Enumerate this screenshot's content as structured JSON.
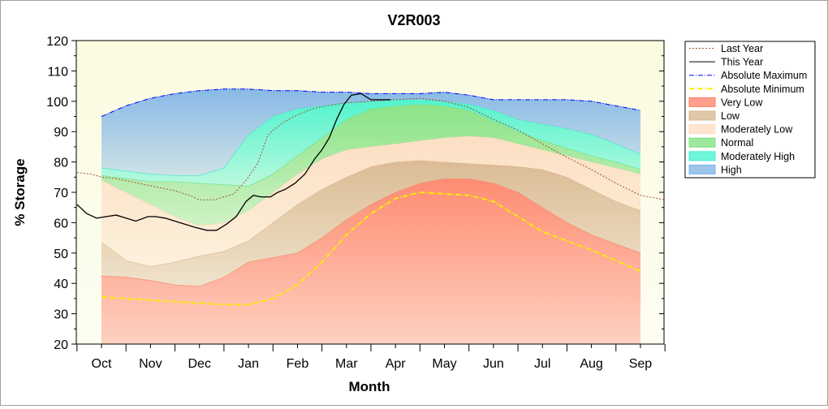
{
  "chart_data": {
    "type": "area",
    "title": "V2R003",
    "xlabel": "Month",
    "ylabel": "% Storage",
    "ylim": [
      20,
      120
    ],
    "yticks": [
      20,
      30,
      40,
      50,
      60,
      70,
      80,
      90,
      100,
      110,
      120
    ],
    "xlim": [
      -0.5,
      11.5
    ],
    "categories": [
      "Oct",
      "Nov",
      "Dec",
      "Jan",
      "Feb",
      "Mar",
      "Apr",
      "May",
      "Jun",
      "Jul",
      "Aug",
      "Sep"
    ],
    "grid": false,
    "legend_position": "right",
    "band_x": [
      0,
      0.5,
      1,
      1.5,
      2,
      2.5,
      3,
      3.5,
      4,
      4.5,
      5,
      5.5,
      6,
      6.5,
      7,
      7.5,
      8,
      8.5,
      9,
      9.5,
      10,
      10.5,
      11
    ],
    "band_bounds": {
      "floor": [
        20,
        20,
        20,
        20,
        20,
        20,
        20,
        20,
        20,
        20,
        20,
        20,
        20,
        20,
        20,
        20,
        20,
        20,
        20,
        20,
        20,
        20,
        20
      ],
      "very_low_top": [
        42.5,
        42,
        41,
        39.5,
        39,
        42,
        47,
        48.5,
        50,
        55,
        61,
        66,
        70,
        73,
        74.5,
        74.5,
        73,
        70,
        65,
        60,
        56,
        53,
        50
      ],
      "low_top": [
        53.5,
        47.5,
        45.5,
        47,
        49,
        50.5,
        54,
        60,
        66,
        71,
        75,
        78.5,
        80,
        80.5,
        80,
        79.5,
        79,
        78.5,
        77.5,
        75,
        71,
        67,
        64
      ],
      "moderately_low_top": [
        74,
        70,
        66,
        62,
        59,
        60,
        64,
        70,
        76,
        81,
        84,
        85,
        86,
        87,
        88,
        88.5,
        88,
        86,
        84,
        82,
        80,
        78,
        76
      ],
      "normal_top": [
        75.5,
        74.5,
        73.5,
        73.5,
        73,
        72.5,
        72,
        76,
        82,
        88,
        94,
        97.5,
        98.5,
        99,
        98.5,
        97,
        93.5,
        90,
        87,
        84.5,
        82,
        80,
        77.5
      ],
      "moderately_high_top": [
        78,
        77,
        76,
        75.5,
        75.5,
        78,
        89,
        95,
        97.5,
        98.5,
        99.5,
        100,
        100.5,
        100.5,
        100,
        99,
        97,
        94,
        92.5,
        91,
        89,
        86,
        82.5
      ],
      "high_top": [
        95,
        98.5,
        101,
        102.5,
        103.5,
        104,
        104,
        103.5,
        103.5,
        103,
        103,
        102.5,
        102.5,
        102.5,
        103,
        102,
        100.5,
        100.5,
        100.5,
        100.5,
        100,
        98.5,
        97
      ]
    },
    "series": [
      {
        "name": "Last Year",
        "style": "dotted",
        "color": "#a0522d",
        "x": [
          -0.5,
          -0.2,
          0,
          0.3,
          0.6,
          0.9,
          1.2,
          1.5,
          1.8,
          2,
          2.3,
          2.5,
          2.7,
          2.9,
          3,
          3.2,
          3.4,
          3.7,
          4,
          4.3,
          4.6,
          5,
          5.5,
          6,
          6.5,
          7,
          7.5,
          8,
          8.5,
          9,
          9.5,
          10,
          10.5,
          11,
          11.5
        ],
        "y": [
          76.5,
          76,
          75,
          74.5,
          73.5,
          72.5,
          71.5,
          70.5,
          69,
          67.5,
          67.5,
          68.5,
          69.5,
          73,
          75,
          80,
          89,
          93,
          95.5,
          97.5,
          98.5,
          99.5,
          100,
          100.5,
          101,
          100,
          98,
          94,
          90.5,
          86,
          81.5,
          77.5,
          73,
          69,
          67.5
        ]
      },
      {
        "name": "This Year",
        "style": "solid",
        "color": "#000000",
        "x": [
          -0.5,
          -0.3,
          -0.1,
          0.1,
          0.3,
          0.5,
          0.7,
          0.95,
          1.1,
          1.3,
          1.6,
          1.9,
          2.15,
          2.35,
          2.55,
          2.75,
          2.95,
          3.1,
          3.25,
          3.45,
          3.6,
          3.75,
          3.95,
          4.15,
          4.35,
          4.5,
          4.65,
          4.8,
          4.95,
          5.1,
          5.3,
          5.5,
          5.65,
          5.8,
          5.9
        ],
        "y": [
          66,
          63,
          61.5,
          62,
          62.5,
          61.5,
          60.5,
          62,
          62,
          61.5,
          60,
          58.5,
          57.5,
          57.5,
          59.5,
          62,
          67,
          69,
          68.5,
          68.5,
          70,
          71,
          73,
          76,
          81,
          84,
          88,
          94,
          99,
          102,
          102.5,
          100.5,
          100.5,
          100.5,
          100.5
        ]
      },
      {
        "name": "Absolute Maximum",
        "style": "dashdot",
        "color": "#0000ff",
        "x": [
          0,
          0.5,
          1,
          1.5,
          2,
          2.5,
          3,
          3.5,
          4,
          4.5,
          5,
          5.5,
          6,
          6.5,
          7,
          7.5,
          8,
          8.5,
          9,
          9.5,
          10,
          10.5,
          11
        ],
        "y": [
          95,
          98.5,
          101,
          102.5,
          103.5,
          104,
          104,
          103.5,
          103.5,
          103,
          103,
          102.5,
          102.5,
          102.5,
          103,
          102,
          100.5,
          100.5,
          100.5,
          100.5,
          100,
          98.5,
          97
        ]
      },
      {
        "name": "Absolute Minimum",
        "style": "dashdot",
        "color": "#ffee00",
        "x": [
          0,
          0.5,
          1,
          1.5,
          2,
          2.5,
          3,
          3.5,
          4,
          4.5,
          5,
          5.5,
          6,
          6.5,
          7,
          7.5,
          8,
          8.5,
          9,
          9.5,
          10,
          10.5,
          11
        ],
        "y": [
          35.5,
          35,
          34.5,
          34,
          33.5,
          33,
          33,
          35,
          39.5,
          47,
          56,
          63,
          68,
          70,
          69.5,
          69,
          67,
          62,
          57,
          54,
          51,
          47.5,
          44
        ]
      }
    ],
    "bands": [
      {
        "name": "Very Low",
        "color": "#ff7f66",
        "from": "floor",
        "to": "very_low_top"
      },
      {
        "name": "Low",
        "color": "#d7b48c",
        "from": "very_low_top",
        "to": "low_top"
      },
      {
        "name": "Moderately Low",
        "color": "#fcdcc0",
        "from": "low_top",
        "to": "moderately_low_top"
      },
      {
        "name": "Normal",
        "color": "#7ee07e",
        "from": "moderately_low_top",
        "to": "normal_top"
      },
      {
        "name": "Moderately High",
        "color": "#40f2cc",
        "from": "normal_top",
        "to": "moderately_high_top"
      },
      {
        "name": "High",
        "color": "#7bb2e6",
        "from": "moderately_high_top",
        "to": "high_top"
      }
    ],
    "legend": [
      "Last Year",
      "This Year",
      "Absolute Maximum",
      "Absolute Minimum",
      "Very Low",
      "Low",
      "Moderately Low",
      "Normal",
      "Moderately High",
      "High"
    ]
  }
}
